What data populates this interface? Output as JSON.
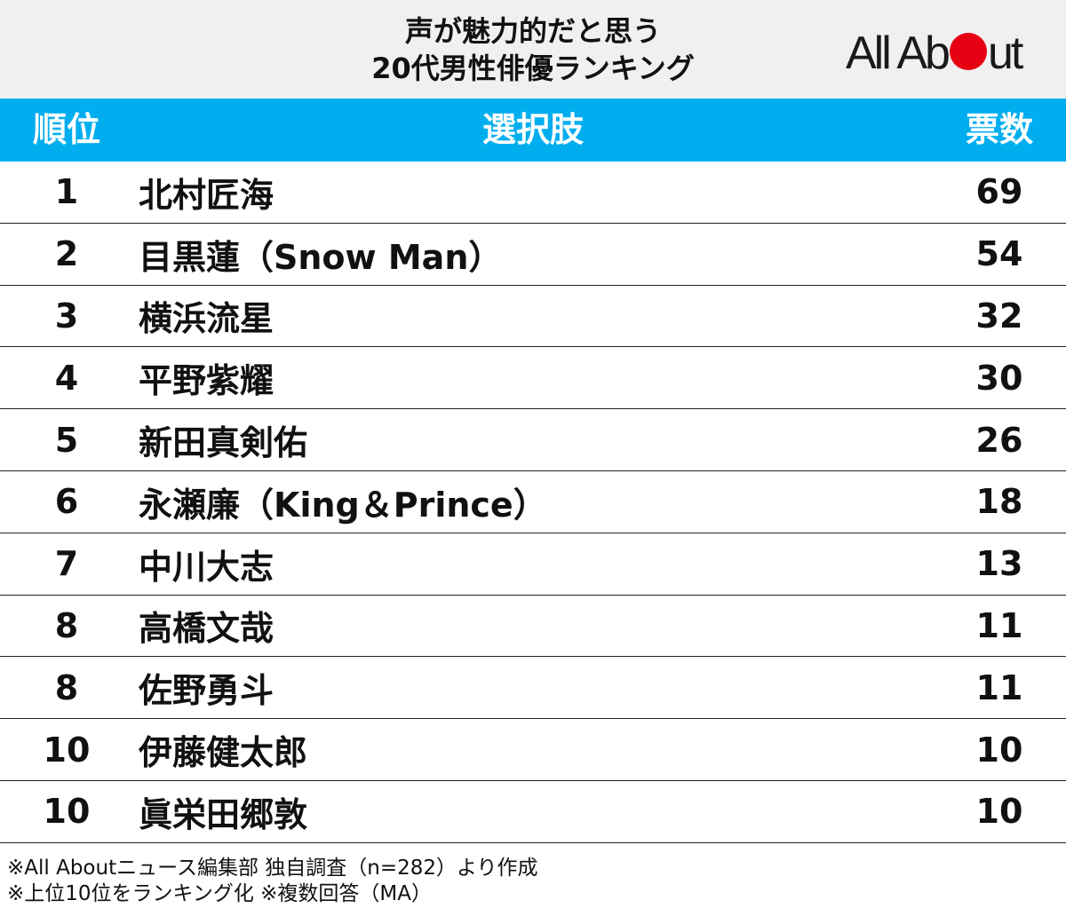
{
  "title": {
    "line1": "声が魅力的だと思う",
    "line2": "20代男性俳優ランキング"
  },
  "logo": {
    "text_before": "All Ab",
    "text_after": "ut",
    "dot_color": "#e60012"
  },
  "colors": {
    "header_background": "#00aeef",
    "title_background": "#f0f0f0"
  },
  "chart_data": {
    "type": "table",
    "columns": [
      "順位",
      "選択肢",
      "票数"
    ],
    "rows": [
      {
        "rank": "1",
        "name": "北村匠海",
        "votes": 69
      },
      {
        "rank": "2",
        "name": "目黒蓮（Snow Man）",
        "votes": 54
      },
      {
        "rank": "3",
        "name": "横浜流星",
        "votes": 32
      },
      {
        "rank": "4",
        "name": "平野紫耀",
        "votes": 30
      },
      {
        "rank": "5",
        "name": "新田真剣佑",
        "votes": 26
      },
      {
        "rank": "6",
        "name": "永瀬廉（King＆Prince）",
        "votes": 18
      },
      {
        "rank": "7",
        "name": "中川大志",
        "votes": 13
      },
      {
        "rank": "8",
        "name": "高橋文哉",
        "votes": 11
      },
      {
        "rank": "8",
        "name": "佐野勇斗",
        "votes": 11
      },
      {
        "rank": "10",
        "name": "伊藤健太郎",
        "votes": 10
      },
      {
        "rank": "10",
        "name": "眞栄田郷敦",
        "votes": 10
      }
    ]
  },
  "notes": {
    "line1": "※All Aboutニュース編集部 独自調査（n=282）より作成",
    "line2": "※上位10位をランキング化 ※複数回答（MA）"
  }
}
